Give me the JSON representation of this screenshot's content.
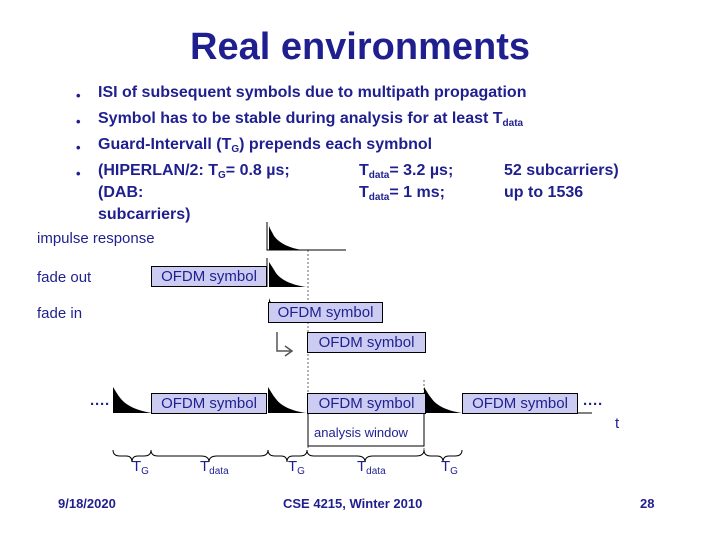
{
  "title": "Real environments",
  "bullets": [
    {
      "text": "ISI of subsequent symbols due to multipath propagation"
    },
    {
      "pre": "Symbol has to be stable during analysis for at least T",
      "sub": "data"
    },
    {
      "pre": "Guard-Intervall (T",
      "sub": "G",
      "post": ") prepends each symbnol"
    }
  ],
  "bullet4": {
    "col1_pre": "(HIPERLAN/2: T",
    "col1_sub": "G",
    "col1_post": "= 0.8 µs;",
    "col2_pre": "T",
    "col2_sub": "data",
    "col2_post": "= 3.2 µs;",
    "col3": "52 subcarriers)",
    "row2_col1": "(DAB:",
    "row2_col2_pre": "T",
    "row2_col2_sub": "data",
    "row2_col2_post": "= 1 ms;",
    "row2_col3": "up to 1536",
    "row3": "subcarriers)"
  },
  "diagram": {
    "impulse_response": "impulse response",
    "fade_out": "fade out",
    "fade_in": "fade in",
    "ofdm_symbol": "OFDM symbol",
    "analysis_window": "analysis window",
    "t_axis": "t",
    "tg_main": "T",
    "tg_sub": "G",
    "tdata_main": "T",
    "tdata_sub": "data",
    "ellipsis": "····"
  },
  "footer": {
    "date": "9/18/2020",
    "course": "CSE 4215, Winter 2010",
    "page": "28"
  },
  "colors": {
    "text": "#1f1f8f",
    "box_fill": "#ccccf2",
    "pulse": "#000000"
  }
}
